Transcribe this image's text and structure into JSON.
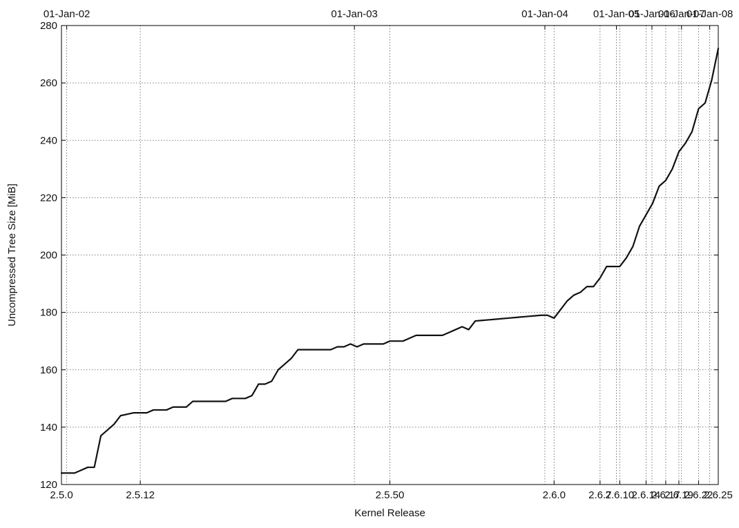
{
  "chart_data": {
    "type": "line",
    "title": "",
    "xlabel": "Kernel Release",
    "ylabel": "Uncompressed Tree Size [MiB]",
    "ylim": [
      120,
      280
    ],
    "yticks": [
      120,
      140,
      160,
      180,
      200,
      220,
      240,
      260,
      280
    ],
    "grid": true,
    "x_bottom_ticks": [
      {
        "label": "2.5.0",
        "x": 0
      },
      {
        "label": "2.5.12",
        "x": 12
      },
      {
        "label": "2.5.50",
        "x": 50
      },
      {
        "label": "2.6.0",
        "x": 75
      },
      {
        "label": "2.6.7",
        "x": 82
      },
      {
        "label": "2.6.10",
        "x": 85
      },
      {
        "label": "2.6.14",
        "x": 89
      },
      {
        "label": "2.6.17",
        "x": 92
      },
      {
        "label": "2.6.19",
        "x": 94
      },
      {
        "label": "2.6.22",
        "x": 97
      },
      {
        "label": "2.6.25",
        "x": 100
      }
    ],
    "x_top_ticks": [
      {
        "label": "01-Jan-02",
        "x": 0.8
      },
      {
        "label": "01-Jan-03",
        "x": 44.6
      },
      {
        "label": "01-Jan-04",
        "x": 73.6
      },
      {
        "label": "01-Jan-05",
        "x": 84.5
      },
      {
        "label": "01-Jan-06",
        "x": 89.9
      },
      {
        "label": "01-Jan-07",
        "x": 94.4
      },
      {
        "label": "01-Jan-08",
        "x": 98.7
      }
    ],
    "series": [
      {
        "x": [
          0,
          1,
          2,
          3,
          4,
          5,
          6,
          7,
          8,
          9,
          10,
          11,
          12,
          13,
          14,
          15,
          16,
          17,
          18,
          19,
          20,
          21,
          22,
          23,
          24,
          25,
          26,
          27,
          28,
          29,
          30,
          31,
          32,
          33,
          34,
          35,
          36,
          37,
          38,
          39,
          40,
          41,
          42,
          43,
          44,
          45,
          46,
          47,
          48,
          49,
          50,
          51,
          52,
          53,
          54,
          55,
          56,
          57,
          58,
          59,
          60,
          61,
          62,
          63,
          64,
          65,
          66,
          67,
          68,
          69,
          70,
          71,
          72,
          73,
          74,
          75,
          76,
          77,
          78,
          79,
          80,
          81,
          82,
          83,
          84,
          85,
          86,
          87,
          88,
          89,
          90,
          91,
          92,
          93,
          94,
          95,
          96,
          97,
          98,
          99,
          100
        ],
        "values": [
          124,
          124,
          124,
          125,
          126,
          126,
          137,
          139,
          141,
          144,
          144.5,
          145,
          145,
          145,
          146,
          146,
          146,
          147,
          147,
          147,
          149,
          149,
          149,
          149,
          149,
          149,
          150,
          150,
          150,
          151,
          155,
          155,
          156,
          160,
          162,
          164,
          167,
          167,
          167,
          167,
          167,
          167,
          168,
          168,
          169,
          168,
          169,
          169,
          169,
          169,
          170,
          170,
          170,
          171,
          172,
          172,
          172,
          172,
          172,
          173,
          174,
          175,
          174,
          177,
          177.2,
          177.4,
          177.6,
          177.8,
          178,
          178.2,
          178.4,
          178.6,
          178.8,
          179,
          179,
          178,
          181,
          184,
          186,
          187,
          189,
          189,
          192,
          196,
          196,
          196,
          199,
          203,
          210,
          214,
          218,
          224,
          226,
          230,
          236,
          239,
          243,
          251,
          253,
          261,
          272
        ]
      }
    ]
  }
}
